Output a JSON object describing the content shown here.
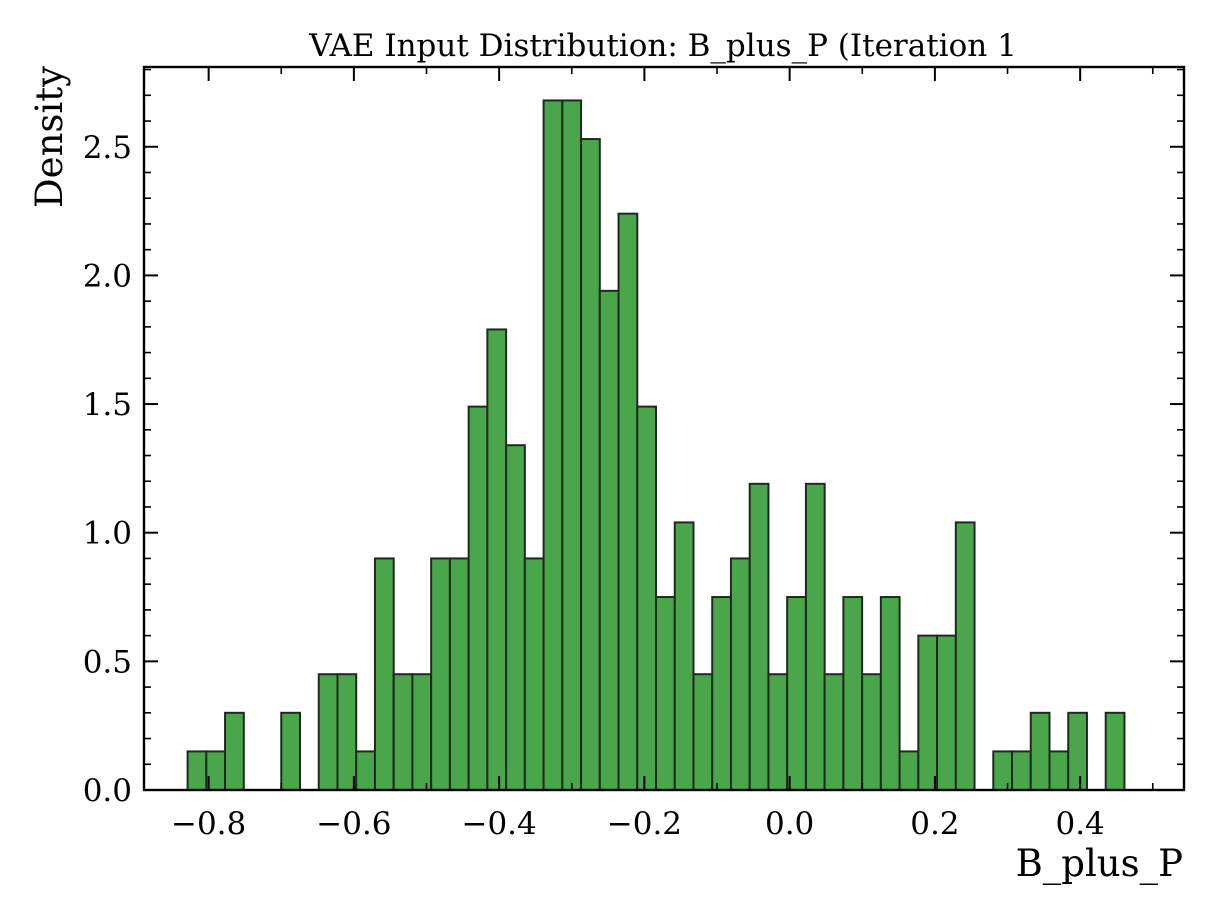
{
  "chart_data": {
    "type": "bar",
    "title": "VAE Input Distribution: B_plus_P (Iteration 1",
    "xlabel": "B_plus_P",
    "ylabel": "Density",
    "xlim": [
      -0.889,
      0.543
    ],
    "ylim": [
      0,
      2.81
    ],
    "grid": false,
    "bar_color": "#4aa64a",
    "edge_color": "#1f2a1f",
    "bin_width": 0.0258,
    "bin_start": -0.829,
    "x_ticks": [
      -0.8,
      -0.6,
      -0.4,
      -0.2,
      0.0,
      0.2,
      0.4
    ],
    "x_tick_labels": [
      "−0.8",
      "−0.6",
      "−0.4",
      "−0.2",
      "0.0",
      "0.2",
      "0.4"
    ],
    "y_ticks": [
      0.0,
      0.5,
      1.0,
      1.5,
      2.0,
      2.5
    ],
    "y_tick_labels": [
      "0.0",
      "0.5",
      "1.0",
      "1.5",
      "2.0",
      "2.5"
    ],
    "values": [
      0.15,
      0.15,
      0.3,
      0,
      0,
      0.3,
      0,
      0.45,
      0.45,
      0.15,
      0.9,
      0.45,
      0.45,
      0.9,
      0.9,
      1.49,
      1.79,
      1.34,
      0.9,
      2.68,
      2.68,
      2.53,
      1.94,
      2.24,
      1.49,
      0.75,
      1.04,
      0.45,
      0.75,
      0.9,
      1.19,
      0.45,
      0.75,
      1.19,
      0.45,
      0.75,
      0.45,
      0.75,
      0.15,
      0.6,
      0.6,
      1.04,
      0,
      0.15,
      0.15,
      0.3,
      0.15,
      0.3,
      0,
      0.3
    ]
  }
}
